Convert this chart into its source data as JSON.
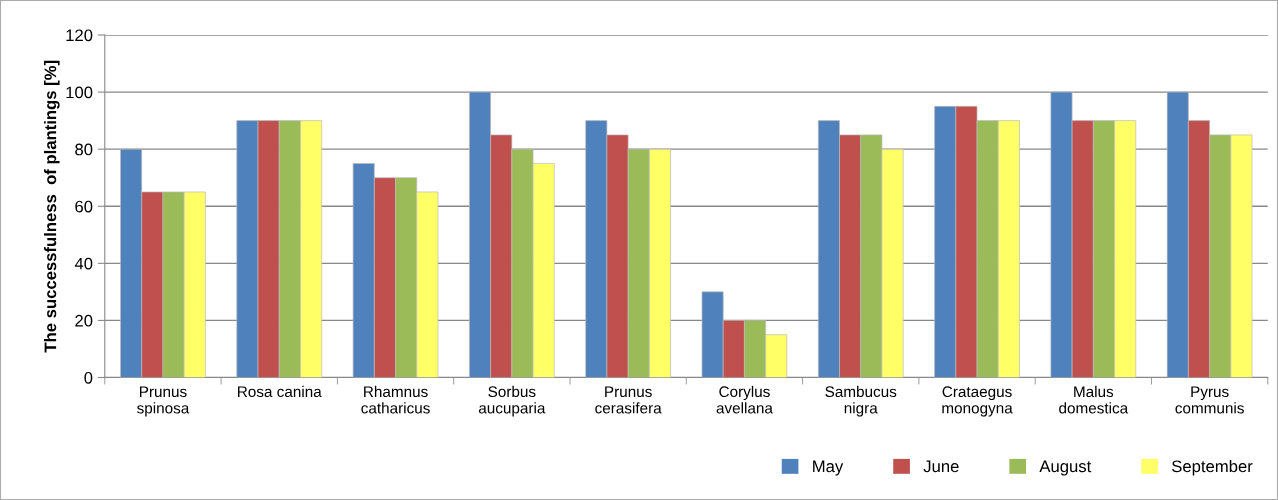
{
  "chart_data": {
    "type": "bar",
    "ylabel": "The successfulness  of plantings [%]",
    "categories": [
      "Prunus\nspinosa",
      "Rosa canina",
      "Rhamnus\ncatharicus",
      "Sorbus\naucuparia",
      "Prunus\ncerasifera",
      "Corylus\navellana",
      "Sambucus\nnigra",
      "Crataegus\nmonogyna",
      "Malus\ndomestica",
      "Pyrus\ncommunis"
    ],
    "series": [
      {
        "name": "May",
        "color": "#4f81bd",
        "values": [
          80,
          90,
          75,
          100,
          90,
          30,
          90,
          95,
          100,
          100
        ]
      },
      {
        "name": "June",
        "color": "#c0504d",
        "values": [
          65,
          90,
          70,
          85,
          85,
          20,
          85,
          95,
          90,
          90
        ]
      },
      {
        "name": "August",
        "color": "#9bbb59",
        "values": [
          65,
          90,
          70,
          80,
          80,
          20,
          85,
          90,
          90,
          85
        ]
      },
      {
        "name": "September",
        "color": "#ffff66",
        "values": [
          65,
          90,
          65,
          75,
          80,
          15,
          80,
          90,
          90,
          85
        ]
      }
    ],
    "ylim": [
      0,
      120
    ],
    "yticks": [
      0,
      20,
      40,
      60,
      80,
      100,
      120
    ],
    "grid": "y",
    "legend": "bottom right"
  }
}
